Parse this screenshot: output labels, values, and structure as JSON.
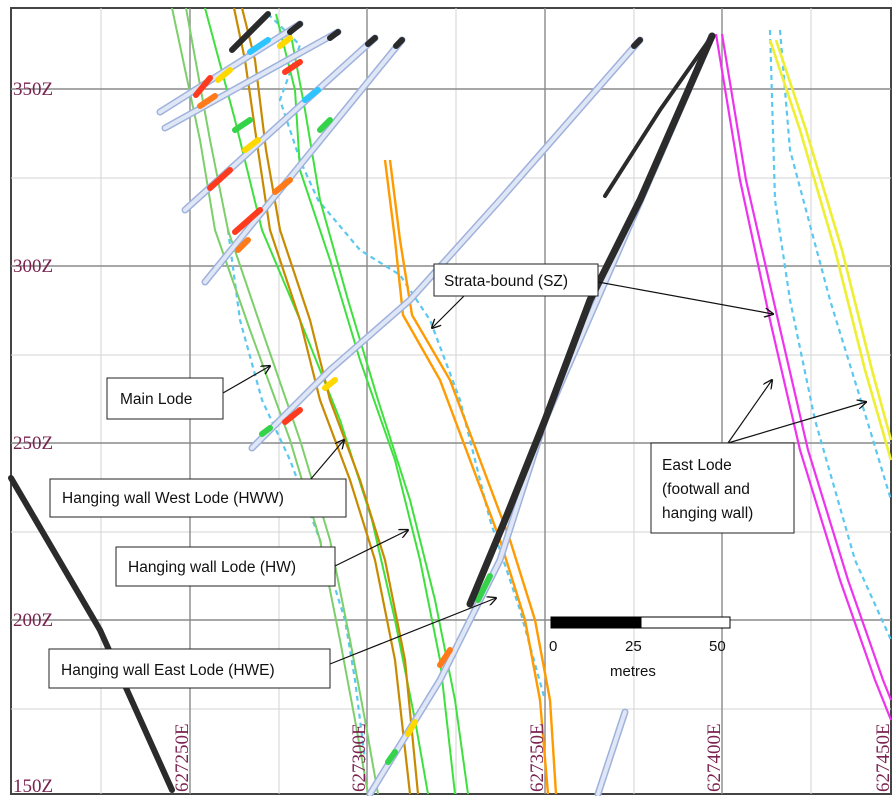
{
  "elevation_labels": [
    "350Z",
    "300Z",
    "250Z",
    "200Z",
    "150Z"
  ],
  "easting_labels": [
    "627250E",
    "627300E",
    "627350E",
    "627400E",
    "627450E"
  ],
  "callouts": {
    "strata_bound": "Strata-bound (SZ)",
    "main_lode": "Main Lode",
    "hww": "Hanging wall West Lode (HWW)",
    "hw": "Hanging wall Lode (HW)",
    "hwe": "Hanging wall East Lode (HWE)",
    "east_lode_line1": "East Lode",
    "east_lode_line2": "(footwall and",
    "east_lode_line3": "hanging wall)"
  },
  "scale_bar": {
    "tick_0": "0",
    "tick_25": "25",
    "tick_50": "50",
    "unit": "metres"
  },
  "colors": {
    "grid_major": "#808080",
    "grid_minor": "#d0d0d0",
    "main_lode": "#7ccf6a",
    "hw_lode": "#3ee03e",
    "hww_lode": "#c88a00",
    "strata_bound": "#ff9a00",
    "east_lode": "#ee33ee",
    "east_lode_hw": "#eeee33",
    "dashed_outline": "#5bc8f0",
    "drillhole": "#c7d3ec",
    "fault": "#222222"
  }
}
